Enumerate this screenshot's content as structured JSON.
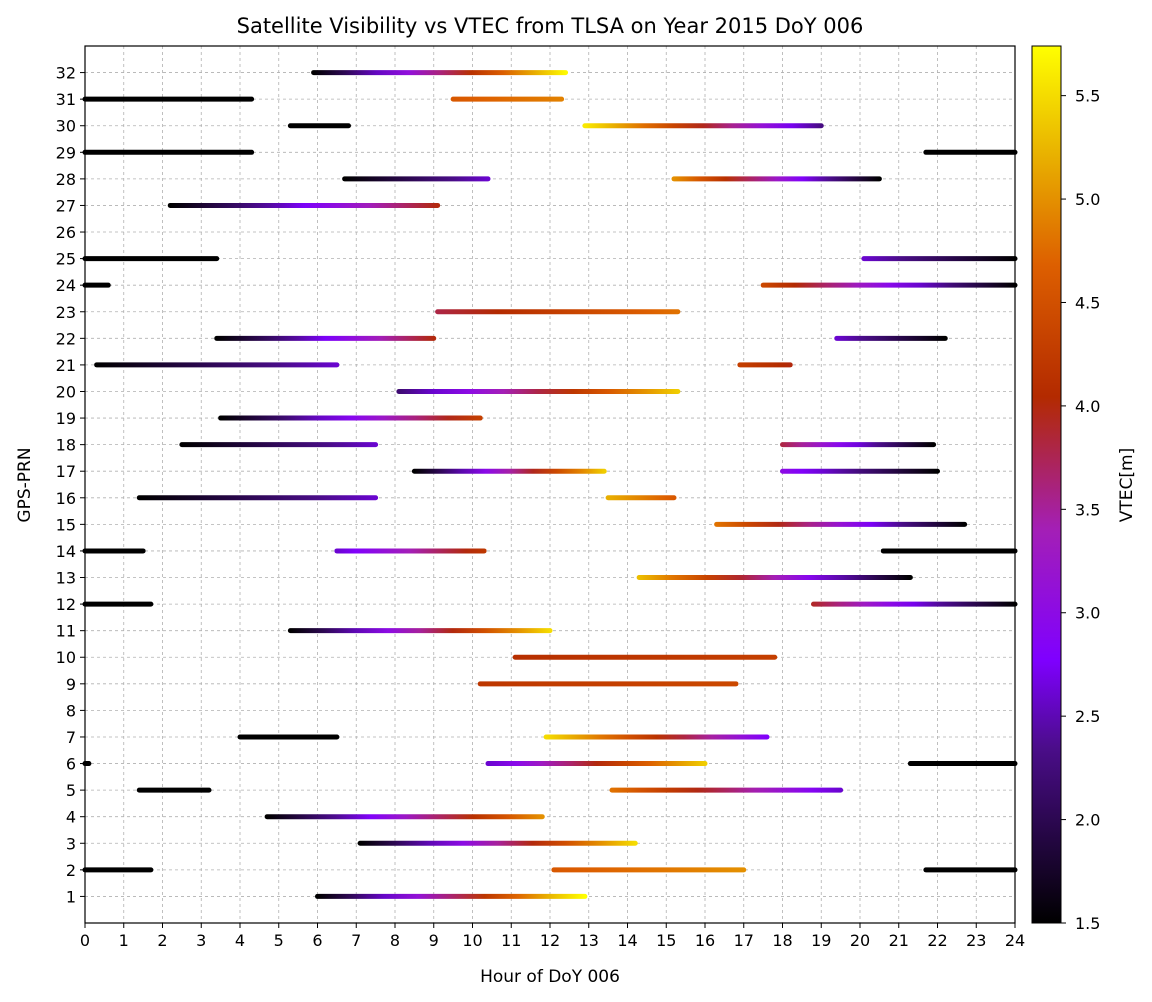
{
  "chart_data": {
    "type": "scatter",
    "title": "Satellite Visibility vs VTEC from TLSA on Year 2015 DoY 006",
    "xlabel": "Hour of DoY 006",
    "ylabel": "GPS-PRN",
    "xlim": [
      0,
      24
    ],
    "ylim": [
      0,
      33
    ],
    "xticks": [
      "0",
      "1",
      "2",
      "3",
      "4",
      "5",
      "6",
      "7",
      "8",
      "9",
      "10",
      "11",
      "12",
      "13",
      "14",
      "15",
      "16",
      "17",
      "18",
      "19",
      "20",
      "21",
      "22",
      "23",
      "24"
    ],
    "yticks": [
      "1",
      "2",
      "3",
      "4",
      "5",
      "6",
      "7",
      "8",
      "9",
      "10",
      "11",
      "12",
      "13",
      "14",
      "15",
      "16",
      "17",
      "18",
      "19",
      "20",
      "21",
      "22",
      "23",
      "24",
      "25",
      "26",
      "27",
      "28",
      "29",
      "30",
      "31",
      "32"
    ],
    "grid": true,
    "colorbar": {
      "label": "VTEC[m]",
      "colormap": "gnuplot",
      "min": 1.5,
      "max": 5.74,
      "ticks": [
        "1.5",
        "2.0",
        "2.5",
        "3.0",
        "3.5",
        "4.0",
        "4.5",
        "5.0",
        "5.5"
      ]
    },
    "series": [
      {
        "prn": 32,
        "segments": [
          {
            "start": 5.9,
            "end": 12.4,
            "vtec_start": 1.5,
            "vtec_end": 5.7
          }
        ]
      },
      {
        "prn": 31,
        "segments": [
          {
            "start": 0.0,
            "end": 4.3,
            "vtec_start": 1.5,
            "vtec_end": 1.5
          },
          {
            "start": 9.5,
            "end": 12.3,
            "vtec_start": 4.6,
            "vtec_end": 4.9
          }
        ]
      },
      {
        "prn": 30,
        "segments": [
          {
            "start": 5.3,
            "end": 6.8,
            "vtec_start": 1.5,
            "vtec_end": 1.5
          },
          {
            "start": 12.9,
            "end": 19.0,
            "vtec_start": 5.6,
            "vtec_end": 2.3
          }
        ]
      },
      {
        "prn": 29,
        "segments": [
          {
            "start": 0.0,
            "end": 4.3,
            "vtec_start": 1.5,
            "vtec_end": 1.5
          },
          {
            "start": 21.7,
            "end": 24.0,
            "vtec_start": 1.5,
            "vtec_end": 1.5
          }
        ]
      },
      {
        "prn": 28,
        "segments": [
          {
            "start": 6.7,
            "end": 10.4,
            "vtec_start": 1.5,
            "vtec_end": 2.6
          },
          {
            "start": 15.2,
            "end": 20.5,
            "vtec_start": 5.0,
            "vtec_end": 1.5
          }
        ]
      },
      {
        "prn": 27,
        "segments": [
          {
            "start": 2.2,
            "end": 9.1,
            "vtec_start": 1.5,
            "vtec_end": 4.0
          }
        ]
      },
      {
        "prn": 25,
        "segments": [
          {
            "start": 0.0,
            "end": 3.4,
            "vtec_start": 1.5,
            "vtec_end": 1.5
          },
          {
            "start": 20.1,
            "end": 24.0,
            "vtec_start": 2.6,
            "vtec_end": 1.5
          }
        ]
      },
      {
        "prn": 24,
        "segments": [
          {
            "start": 0.0,
            "end": 0.6,
            "vtec_start": 1.5,
            "vtec_end": 1.5
          },
          {
            "start": 17.5,
            "end": 24.0,
            "vtec_start": 4.4,
            "vtec_end": 1.5
          }
        ]
      },
      {
        "prn": 23,
        "segments": [
          {
            "start": 9.1,
            "end": 15.3,
            "vtec_start": 3.8,
            "vtec_end": 4.8
          }
        ]
      },
      {
        "prn": 22,
        "segments": [
          {
            "start": 3.4,
            "end": 9.0,
            "vtec_start": 1.5,
            "vtec_end": 4.0
          },
          {
            "start": 19.4,
            "end": 22.2,
            "vtec_start": 2.6,
            "vtec_end": 1.5
          }
        ]
      },
      {
        "prn": 21,
        "segments": [
          {
            "start": 0.3,
            "end": 6.5,
            "vtec_start": 1.5,
            "vtec_end": 2.6
          },
          {
            "start": 16.9,
            "end": 18.2,
            "vtec_start": 4.3,
            "vtec_end": 4.0
          }
        ]
      },
      {
        "prn": 20,
        "segments": [
          {
            "start": 8.1,
            "end": 15.3,
            "vtec_start": 2.2,
            "vtec_end": 5.4
          }
        ]
      },
      {
        "prn": 19,
        "segments": [
          {
            "start": 3.5,
            "end": 10.2,
            "vtec_start": 1.5,
            "vtec_end": 4.3
          }
        ]
      },
      {
        "prn": 18,
        "segments": [
          {
            "start": 2.5,
            "end": 7.5,
            "vtec_start": 1.5,
            "vtec_end": 2.6
          },
          {
            "start": 18.0,
            "end": 21.9,
            "vtec_start": 3.8,
            "vtec_end": 1.5
          }
        ]
      },
      {
        "prn": 17,
        "segments": [
          {
            "start": 8.5,
            "end": 13.4,
            "vtec_start": 1.5,
            "vtec_end": 5.4
          },
          {
            "start": 18.0,
            "end": 22.0,
            "vtec_start": 3.0,
            "vtec_end": 1.5
          }
        ]
      },
      {
        "prn": 16,
        "segments": [
          {
            "start": 1.4,
            "end": 7.5,
            "vtec_start": 1.5,
            "vtec_end": 2.6
          },
          {
            "start": 13.5,
            "end": 15.2,
            "vtec_start": 5.2,
            "vtec_end": 4.6
          }
        ]
      },
      {
        "prn": 15,
        "segments": [
          {
            "start": 16.3,
            "end": 22.7,
            "vtec_start": 4.8,
            "vtec_end": 1.5
          }
        ]
      },
      {
        "prn": 14,
        "segments": [
          {
            "start": 0.0,
            "end": 1.5,
            "vtec_start": 1.5,
            "vtec_end": 1.5
          },
          {
            "start": 6.5,
            "end": 10.3,
            "vtec_start": 2.6,
            "vtec_end": 4.2
          },
          {
            "start": 20.6,
            "end": 24.0,
            "vtec_start": 1.5,
            "vtec_end": 1.5
          }
        ]
      },
      {
        "prn": 13,
        "segments": [
          {
            "start": 14.3,
            "end": 21.3,
            "vtec_start": 5.3,
            "vtec_end": 1.5
          }
        ]
      },
      {
        "prn": 12,
        "segments": [
          {
            "start": 0.0,
            "end": 1.7,
            "vtec_start": 1.5,
            "vtec_end": 1.5
          },
          {
            "start": 18.8,
            "end": 24.0,
            "vtec_start": 3.9,
            "vtec_end": 1.5
          }
        ]
      },
      {
        "prn": 11,
        "segments": [
          {
            "start": 5.3,
            "end": 12.0,
            "vtec_start": 1.5,
            "vtec_end": 5.5
          }
        ]
      },
      {
        "prn": 10,
        "segments": [
          {
            "start": 11.1,
            "end": 17.8,
            "vtec_start": 4.1,
            "vtec_end": 4.3
          }
        ]
      },
      {
        "prn": 9,
        "segments": [
          {
            "start": 10.2,
            "end": 16.8,
            "vtec_start": 4.2,
            "vtec_end": 4.4
          }
        ]
      },
      {
        "prn": 7,
        "segments": [
          {
            "start": 4.0,
            "end": 6.5,
            "vtec_start": 1.5,
            "vtec_end": 1.5
          },
          {
            "start": 11.9,
            "end": 17.6,
            "vtec_start": 5.5,
            "vtec_end": 2.8
          }
        ]
      },
      {
        "prn": 6,
        "segments": [
          {
            "start": 0.0,
            "end": 0.1,
            "vtec_start": 1.5,
            "vtec_end": 1.5
          },
          {
            "start": 10.4,
            "end": 16.0,
            "vtec_start": 2.6,
            "vtec_end": 5.4
          },
          {
            "start": 21.3,
            "end": 24.0,
            "vtec_start": 1.5,
            "vtec_end": 1.5
          }
        ]
      },
      {
        "prn": 5,
        "segments": [
          {
            "start": 1.4,
            "end": 3.2,
            "vtec_start": 1.5,
            "vtec_end": 1.5
          },
          {
            "start": 13.6,
            "end": 19.5,
            "vtec_start": 4.8,
            "vtec_end": 2.6
          }
        ]
      },
      {
        "prn": 4,
        "segments": [
          {
            "start": 4.7,
            "end": 11.8,
            "vtec_start": 1.5,
            "vtec_end": 5.0
          }
        ]
      },
      {
        "prn": 3,
        "segments": [
          {
            "start": 7.1,
            "end": 14.2,
            "vtec_start": 1.5,
            "vtec_end": 5.5
          }
        ]
      },
      {
        "prn": 2,
        "segments": [
          {
            "start": 0.0,
            "end": 1.7,
            "vtec_start": 1.5,
            "vtec_end": 1.5
          },
          {
            "start": 12.1,
            "end": 17.0,
            "vtec_start": 4.6,
            "vtec_end": 5.0
          },
          {
            "start": 21.7,
            "end": 24.0,
            "vtec_start": 1.5,
            "vtec_end": 1.5
          }
        ]
      },
      {
        "prn": 1,
        "segments": [
          {
            "start": 6.0,
            "end": 12.9,
            "vtec_start": 1.5,
            "vtec_end": 5.8
          }
        ]
      }
    ]
  }
}
